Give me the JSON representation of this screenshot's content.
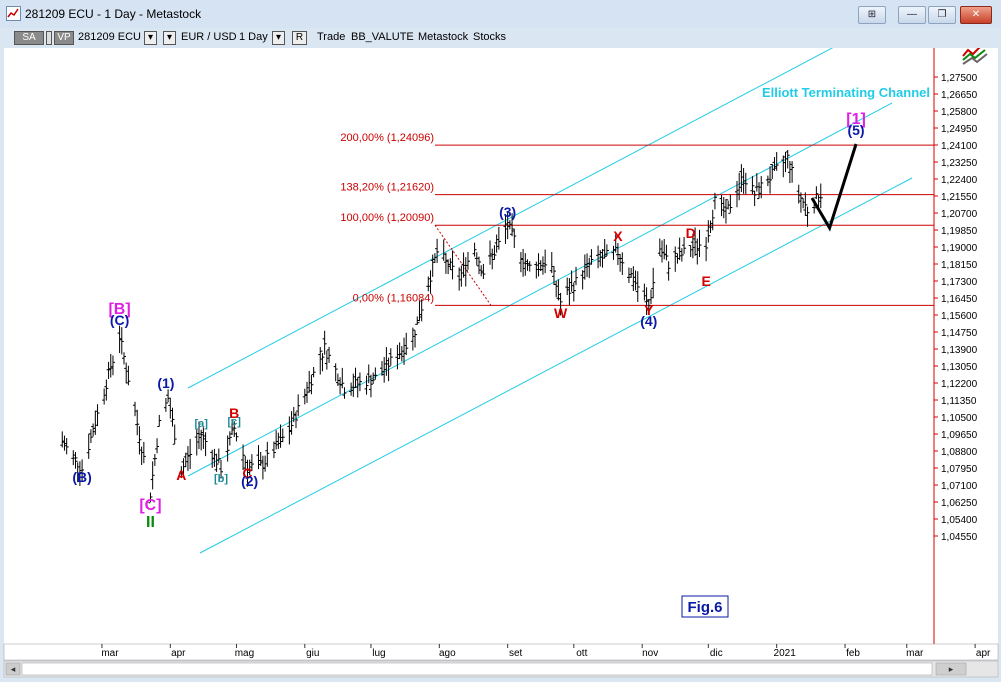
{
  "window": {
    "title": "281209 ECU - 1 Day - Metastock",
    "buttons": [
      "⊞",
      "—",
      "❐",
      "✕"
    ]
  },
  "toolbar": {
    "sa": "SA",
    "vp": "VP",
    "symbol": "281209 ECU",
    "pair": "EUR / USD",
    "period": "1 Day",
    "r": "R",
    "trade": "Trade",
    "bb": "BB_VALUTE",
    "metastock": "Metastock",
    "stocks": "Stocks"
  },
  "colors": {
    "fib_line": "#cc0000",
    "channel": "#22cce6",
    "wave_blue": "#0a1aa6",
    "wave_red": "#d40000",
    "wave_magenta": "#e020e0",
    "wave_teal": "#1a8a96",
    "wave_green": "#0a8a0a"
  },
  "chart_data": {
    "type": "ohlc",
    "price_axis": [
      "1,27500",
      "1,26650",
      "1,25800",
      "1,24950",
      "1,24100",
      "1,23250",
      "1,22400",
      "1,21550",
      "1,20700",
      "1,19850",
      "1,19000",
      "1,18150",
      "1,17300",
      "1,16450",
      "1,15600",
      "1,14750",
      "1,13900",
      "1,13050",
      "1,12200",
      "1,11350",
      "1,10500",
      "1,09650",
      "1,08800",
      "1,07950",
      "1,07100",
      "1,06250",
      "1,05400",
      "1,04550"
    ],
    "time_axis": [
      "mar",
      "apr",
      "mag",
      "giu",
      "lug",
      "ago",
      "set",
      "ott",
      "nov",
      "dic",
      "2021",
      "feb",
      "mar",
      "apr"
    ],
    "fib_levels": [
      {
        "label": "200,00% (1,24096)",
        "value": 1.24096
      },
      {
        "label": "138,20% (1,21620)",
        "value": 1.2162
      },
      {
        "label": "100,00% (1,20090)",
        "value": 1.2009
      },
      {
        "label": "0,00% (1,16084)",
        "value": 1.16084
      }
    ],
    "channel_label": "Elliott Terminating Channel",
    "figure_label": "Fig.6",
    "projection_points": [
      {
        "date": "2021-01-17",
        "price": 1.2145
      },
      {
        "date": "2021-01-25",
        "price": 1.1995
      },
      {
        "date": "2021-02-06",
        "price": 1.2415
      }
    ],
    "price_path": [
      {
        "date": "2020-02-12",
        "price": 1.0925
      },
      {
        "date": "2020-02-21",
        "price": 1.079
      },
      {
        "date": "2020-03-03",
        "price": 1.122
      },
      {
        "date": "2020-03-09",
        "price": 1.1455
      },
      {
        "date": "2020-03-14",
        "price": 1.119
      },
      {
        "date": "2020-03-23",
        "price": 1.067
      },
      {
        "date": "2020-03-27",
        "price": 1.1015
      },
      {
        "date": "2020-03-31",
        "price": 1.1145
      },
      {
        "date": "2020-04-06",
        "price": 1.0785
      },
      {
        "date": "2020-04-15",
        "price": 1.0965
      },
      {
        "date": "2020-04-24",
        "price": 1.0795
      },
      {
        "date": "2020-04-30",
        "price": 1.0995
      },
      {
        "date": "2020-05-06",
        "price": 1.0795
      },
      {
        "date": "2020-05-13",
        "price": 1.0815
      },
      {
        "date": "2020-05-25",
        "price": 1.0985
      },
      {
        "date": "2020-06-10",
        "price": 1.1395
      },
      {
        "date": "2020-06-19",
        "price": 1.1195
      },
      {
        "date": "2020-07-03",
        "price": 1.1245
      },
      {
        "date": "2020-07-20",
        "price": 1.1445
      },
      {
        "date": "2020-07-31",
        "price": 1.1875
      },
      {
        "date": "2020-08-10",
        "price": 1.1745
      },
      {
        "date": "2020-08-17",
        "price": 1.1895
      },
      {
        "date": "2020-08-21",
        "price": 1.1775
      },
      {
        "date": "2020-08-28",
        "price": 1.1915
      },
      {
        "date": "2020-09-01",
        "price": 1.2009
      },
      {
        "date": "2020-09-10",
        "price": 1.1795
      },
      {
        "date": "2020-09-20",
        "price": 1.1835
      },
      {
        "date": "2020-09-25",
        "price": 1.1625
      },
      {
        "date": "2020-10-09",
        "price": 1.1825
      },
      {
        "date": "2020-10-21",
        "price": 1.1875
      },
      {
        "date": "2020-11-04",
        "price": 1.1605
      },
      {
        "date": "2020-11-09",
        "price": 1.1895
      },
      {
        "date": "2020-11-13",
        "price": 1.1815
      },
      {
        "date": "2020-11-23",
        "price": 1.1895
      },
      {
        "date": "2020-11-30",
        "price": 1.1925
      },
      {
        "date": "2020-12-04",
        "price": 1.2125
      },
      {
        "date": "2020-12-09",
        "price": 1.2065
      },
      {
        "date": "2020-12-17",
        "price": 1.2255
      },
      {
        "date": "2020-12-22",
        "price": 1.2165
      },
      {
        "date": "2021-01-01",
        "price": 1.2285
      },
      {
        "date": "2021-01-06",
        "price": 1.2345
      },
      {
        "date": "2021-01-11",
        "price": 1.2165
      },
      {
        "date": "2021-01-15",
        "price": 1.2085
      },
      {
        "date": "2021-01-21",
        "price": 1.2165
      }
    ],
    "wave_labels": [
      {
        "text": "(B)",
        "date": "2020-02-21",
        "price": 1.0725,
        "color": "blue"
      },
      {
        "text": "[B]",
        "date": "2020-03-09",
        "price": 1.1565,
        "color": "magenta"
      },
      {
        "text": "(C)",
        "date": "2020-03-09",
        "price": 1.151,
        "color": "blue"
      },
      {
        "text": "[C]",
        "date": "2020-03-23",
        "price": 1.0585,
        "color": "magenta"
      },
      {
        "text": "II",
        "date": "2020-03-23",
        "price": 1.05,
        "color": "green"
      },
      {
        "text": "(1)",
        "date": "2020-03-30",
        "price": 1.1195,
        "color": "blue"
      },
      {
        "text": "A",
        "date": "2020-04-06",
        "price": 1.0735,
        "color": "red"
      },
      {
        "text": "[a]",
        "date": "2020-04-15",
        "price": 1.1,
        "color": "teal"
      },
      {
        "text": "[b]",
        "date": "2020-04-24",
        "price": 1.0725,
        "color": "teal"
      },
      {
        "text": "B",
        "date": "2020-04-30",
        "price": 1.1045,
        "color": "red"
      },
      {
        "text": "[c]",
        "date": "2020-04-30",
        "price": 1.101,
        "color": "teal"
      },
      {
        "text": "C",
        "date": "2020-05-06",
        "price": 1.0745,
        "color": "red"
      },
      {
        "text": "(2)",
        "date": "2020-05-07",
        "price": 1.0705,
        "color": "blue"
      },
      {
        "text": "(3)",
        "date": "2020-09-01",
        "price": 1.205,
        "color": "blue"
      },
      {
        "text": "W",
        "date": "2020-09-25",
        "price": 1.1545,
        "color": "red"
      },
      {
        "text": "X",
        "date": "2020-10-21",
        "price": 1.193,
        "color": "red"
      },
      {
        "text": "D",
        "date": "2020-11-23",
        "price": 1.1945,
        "color": "red"
      },
      {
        "text": "E",
        "date": "2020-11-30",
        "price": 1.1705,
        "color": "red"
      },
      {
        "text": "Y",
        "date": "2020-11-04",
        "price": 1.156,
        "color": "red"
      },
      {
        "text": "(4)",
        "date": "2020-11-04",
        "price": 1.1505,
        "color": "blue"
      },
      {
        "text": "[1]",
        "date": "2021-02-06",
        "price": 1.2515,
        "color": "magenta"
      },
      {
        "text": "(5)",
        "date": "2021-02-06",
        "price": 1.246,
        "color": "blue"
      }
    ]
  }
}
